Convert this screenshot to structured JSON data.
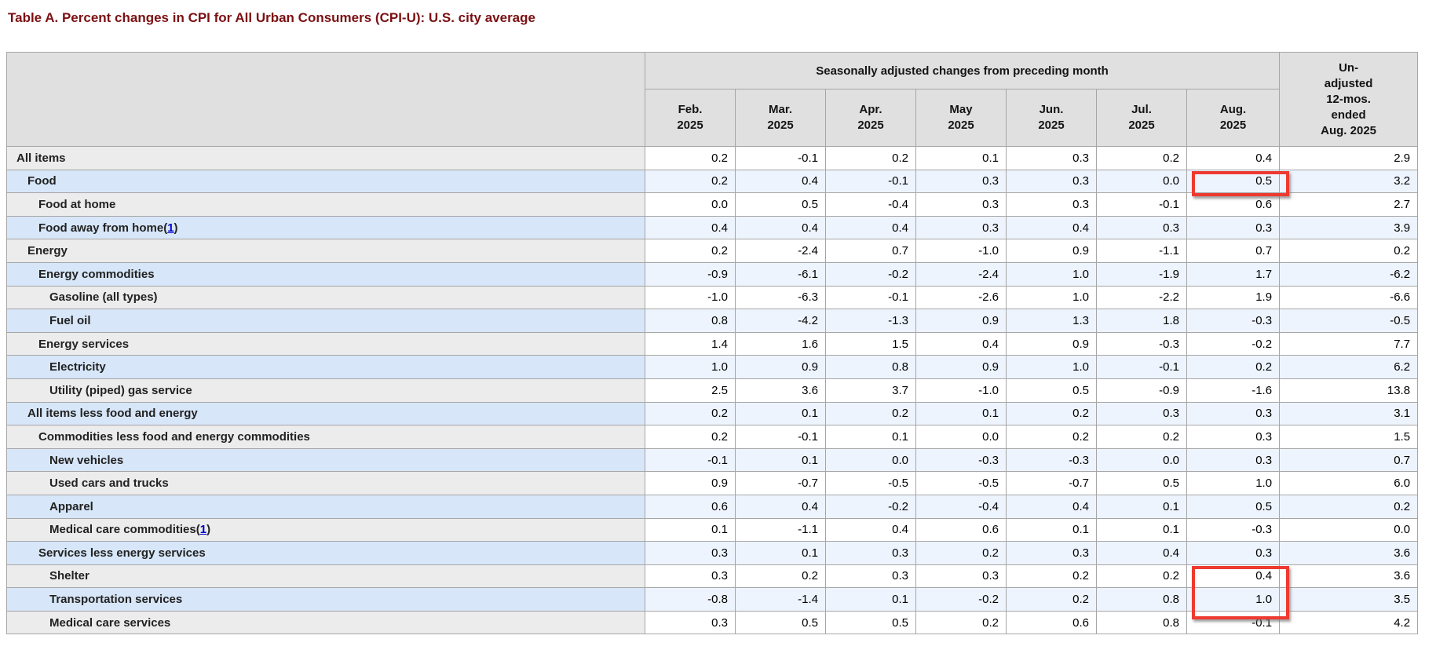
{
  "title": "Table A. Percent changes in CPI for All Urban Consumers (CPI-U): U.S. city average",
  "table": {
    "group_header": "Seasonally adjusted changes from preceding month",
    "unadjusted_header_lines": [
      "Un-",
      "adjusted",
      "12-mos.",
      "ended",
      "Aug. 2025"
    ],
    "columns": [
      {
        "month": "Feb.",
        "year": "2025"
      },
      {
        "month": "Mar.",
        "year": "2025"
      },
      {
        "month": "Apr.",
        "year": "2025"
      },
      {
        "month": "May",
        "year": "2025"
      },
      {
        "month": "Jun.",
        "year": "2025"
      },
      {
        "month": "Jul.",
        "year": "2025"
      },
      {
        "month": "Aug.",
        "year": "2025"
      }
    ],
    "rows": [
      {
        "label": "All items",
        "indent": 0,
        "footnote": null,
        "values": [
          "0.2",
          "-0.1",
          "0.2",
          "0.1",
          "0.3",
          "0.2",
          "0.4",
          "2.9"
        ],
        "aug_highlight": null
      },
      {
        "label": "Food",
        "indent": 1,
        "footnote": null,
        "values": [
          "0.2",
          "0.4",
          "-0.1",
          "0.3",
          "0.3",
          "0.0",
          "0.5",
          "3.2"
        ],
        "aug_highlight": "cell"
      },
      {
        "label": "Food at home",
        "indent": 2,
        "footnote": null,
        "values": [
          "0.0",
          "0.5",
          "-0.4",
          "0.3",
          "0.3",
          "-0.1",
          "0.6",
          "2.7"
        ],
        "aug_highlight": null
      },
      {
        "label": "Food away from home",
        "indent": 2,
        "footnote": "1",
        "values": [
          "0.4",
          "0.4",
          "0.4",
          "0.3",
          "0.4",
          "0.3",
          "0.3",
          "3.9"
        ],
        "aug_highlight": null
      },
      {
        "label": "Energy",
        "indent": 1,
        "footnote": null,
        "values": [
          "0.2",
          "-2.4",
          "0.7",
          "-1.0",
          "0.9",
          "-1.1",
          "0.7",
          "0.2"
        ],
        "aug_highlight": null
      },
      {
        "label": "Energy commodities",
        "indent": 2,
        "footnote": null,
        "values": [
          "-0.9",
          "-6.1",
          "-0.2",
          "-2.4",
          "1.0",
          "-1.9",
          "1.7",
          "-6.2"
        ],
        "aug_highlight": null
      },
      {
        "label": "Gasoline (all types)",
        "indent": 3,
        "footnote": null,
        "values": [
          "-1.0",
          "-6.3",
          "-0.1",
          "-2.6",
          "1.0",
          "-2.2",
          "1.9",
          "-6.6"
        ],
        "aug_highlight": null
      },
      {
        "label": "Fuel oil",
        "indent": 3,
        "footnote": null,
        "values": [
          "0.8",
          "-4.2",
          "-1.3",
          "0.9",
          "1.3",
          "1.8",
          "-0.3",
          "-0.5"
        ],
        "aug_highlight": null
      },
      {
        "label": "Energy services",
        "indent": 2,
        "footnote": null,
        "values": [
          "1.4",
          "1.6",
          "1.5",
          "0.4",
          "0.9",
          "-0.3",
          "-0.2",
          "7.7"
        ],
        "aug_highlight": null
      },
      {
        "label": "Electricity",
        "indent": 3,
        "footnote": null,
        "values": [
          "1.0",
          "0.9",
          "0.8",
          "0.9",
          "1.0",
          "-0.1",
          "0.2",
          "6.2"
        ],
        "aug_highlight": null
      },
      {
        "label": "Utility (piped) gas service",
        "indent": 3,
        "footnote": null,
        "values": [
          "2.5",
          "3.6",
          "3.7",
          "-1.0",
          "0.5",
          "-0.9",
          "-1.6",
          "13.8"
        ],
        "aug_highlight": null
      },
      {
        "label": "All items less food and energy",
        "indent": 1,
        "footnote": null,
        "values": [
          "0.2",
          "0.1",
          "0.2",
          "0.1",
          "0.2",
          "0.3",
          "0.3",
          "3.1"
        ],
        "aug_highlight": null
      },
      {
        "label": "Commodities less food and energy commodities",
        "indent": 2,
        "footnote": null,
        "values": [
          "0.2",
          "-0.1",
          "0.1",
          "0.0",
          "0.2",
          "0.2",
          "0.3",
          "1.5"
        ],
        "aug_highlight": null
      },
      {
        "label": "New vehicles",
        "indent": 3,
        "footnote": null,
        "values": [
          "-0.1",
          "0.1",
          "0.0",
          "-0.3",
          "-0.3",
          "0.0",
          "0.3",
          "0.7"
        ],
        "aug_highlight": null
      },
      {
        "label": "Used cars and trucks",
        "indent": 3,
        "footnote": null,
        "values": [
          "0.9",
          "-0.7",
          "-0.5",
          "-0.5",
          "-0.7",
          "0.5",
          "1.0",
          "6.0"
        ],
        "aug_highlight": null
      },
      {
        "label": "Apparel",
        "indent": 3,
        "footnote": null,
        "values": [
          "0.6",
          "0.4",
          "-0.2",
          "-0.4",
          "0.4",
          "0.1",
          "0.5",
          "0.2"
        ],
        "aug_highlight": null
      },
      {
        "label": "Medical care commodities",
        "indent": 3,
        "footnote": "1",
        "values": [
          "0.1",
          "-1.1",
          "0.4",
          "0.6",
          "0.1",
          "0.1",
          "-0.3",
          "0.0"
        ],
        "aug_highlight": null
      },
      {
        "label": "Services less energy services",
        "indent": 2,
        "footnote": null,
        "values": [
          "0.3",
          "0.1",
          "0.3",
          "0.2",
          "0.3",
          "0.4",
          "0.3",
          "3.6"
        ],
        "aug_highlight": null
      },
      {
        "label": "Shelter",
        "indent": 3,
        "footnote": null,
        "values": [
          "0.3",
          "0.2",
          "0.3",
          "0.3",
          "0.2",
          "0.2",
          "0.4",
          "3.6"
        ],
        "aug_highlight": "span2-start"
      },
      {
        "label": "Transportation services",
        "indent": 3,
        "footnote": null,
        "values": [
          "-0.8",
          "-1.4",
          "0.1",
          "-0.2",
          "0.2",
          "0.8",
          "1.0",
          "3.5"
        ],
        "aug_highlight": "span2-end"
      },
      {
        "label": "Medical care services",
        "indent": 3,
        "footnote": null,
        "values": [
          "0.3",
          "0.5",
          "0.5",
          "0.2",
          "0.6",
          "0.8",
          "-0.1",
          "4.2"
        ],
        "aug_highlight": null
      }
    ]
  },
  "colors": {
    "title_text": "#7b1013",
    "highlight_red": "#ee3a30",
    "header_gray": "#e0e0e0",
    "row_gray_label": "#ececec",
    "row_blue_label": "#d7e6f8",
    "row_blue_data": "#eef4fd",
    "border_gray": "#a6a6a6",
    "footnote_link_blue": "#0000cc"
  }
}
